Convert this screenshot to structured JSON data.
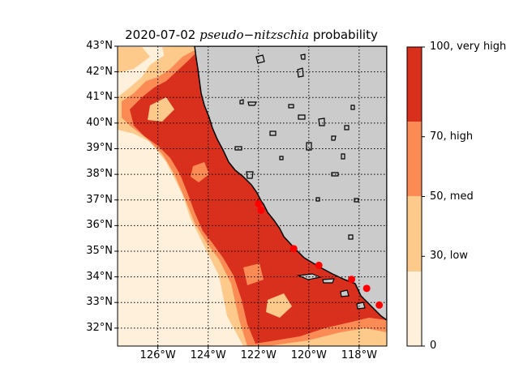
{
  "map": {
    "title_date": "2020-07-02",
    "title_species": "pseudo−nitzschia",
    "title_suffix": "probability",
    "lat_labels": [
      "43°N",
      "42°N",
      "41°N",
      "40°N",
      "39°N",
      "38°N",
      "37°N",
      "36°N",
      "35°N",
      "34°N",
      "33°N",
      "32°N"
    ],
    "lat_values": [
      43,
      42,
      41,
      40,
      39,
      38,
      37,
      36,
      35,
      34,
      33,
      32
    ],
    "lon_labels": [
      "126°W",
      "124°W",
      "122°W",
      "120°W",
      "118°W"
    ],
    "lon_values": [
      -126,
      -124,
      -122,
      -120,
      -118
    ],
    "extent": {
      "lon_min": -127.6,
      "lon_max": -116.9,
      "lat_min": 31.3,
      "lat_max": 43.0
    },
    "land_color": "#cbcbcb",
    "colors": {
      "none": "#fff0dc",
      "low": "#fdca8b",
      "med": "#fb8b55",
      "high": "#d9301e"
    },
    "observation_color": "#ff0000",
    "observations": [
      {
        "lon": -122.0,
        "lat": 36.85
      },
      {
        "lon": -121.9,
        "lat": 36.6
      },
      {
        "lon": -120.6,
        "lat": 35.1
      },
      {
        "lon": -119.6,
        "lat": 34.45
      },
      {
        "lon": -118.3,
        "lat": 33.9
      },
      {
        "lon": -117.7,
        "lat": 33.55
      },
      {
        "lon": -117.2,
        "lat": 32.9
      }
    ]
  },
  "colorbar": {
    "ticks": [
      {
        "value": 100,
        "label": "100, very high"
      },
      {
        "value": 70,
        "label": "70, high"
      },
      {
        "value": 50,
        "label": "50, med"
      },
      {
        "value": 30,
        "label": "30, low"
      },
      {
        "value": 0,
        "label": "0"
      }
    ]
  }
}
